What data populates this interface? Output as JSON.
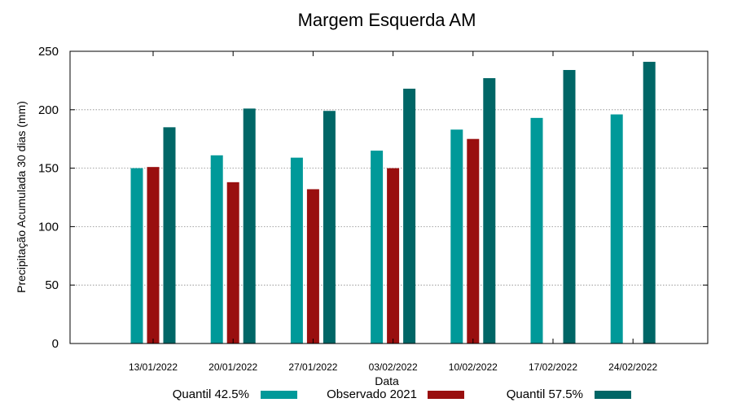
{
  "chart_data": {
    "type": "bar",
    "title": "Margem Esquerda AM",
    "xlabel": "Data",
    "ylabel": "Precipitação Acumulada 30 dias (mm)",
    "ylim": [
      0,
      250
    ],
    "yticks": [
      0,
      50,
      100,
      150,
      200,
      250
    ],
    "grid": true,
    "legend_position": "bottom",
    "categories": [
      "13/01/2022",
      "20/01/2022",
      "27/01/2022",
      "03/02/2022",
      "10/02/2022",
      "17/02/2022",
      "24/02/2022"
    ],
    "series": [
      {
        "name": "Quantil 42.5%",
        "color": "#009999",
        "values": [
          150,
          161,
          159,
          165,
          183,
          193,
          196
        ]
      },
      {
        "name": "Observado 2021",
        "color": "#990f0f",
        "values": [
          151,
          138,
          132,
          150,
          175,
          null,
          null
        ]
      },
      {
        "name": "Quantil 57.5%",
        "color": "#006666",
        "values": [
          185,
          201,
          199,
          218,
          227,
          234,
          241
        ]
      }
    ]
  }
}
